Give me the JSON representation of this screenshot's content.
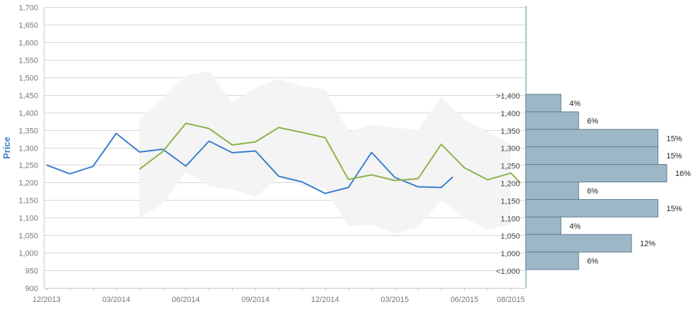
{
  "chart_data": {
    "type": "line",
    "title": "",
    "ylabel": "Price",
    "xlabel": "",
    "ylim": [
      900,
      1700
    ],
    "yticks": [
      900,
      950,
      1000,
      1050,
      1100,
      1150,
      1200,
      1250,
      1300,
      1350,
      1400,
      1450,
      1500,
      1550,
      1600,
      1650,
      1700
    ],
    "ytick_labels": [
      "900",
      "950",
      "1,000",
      "1,050",
      "1,100",
      "1,150",
      "1,200",
      "1,250",
      "1,300",
      "1,350",
      "1,400",
      "1,450",
      "1,500",
      "1,550",
      "1,600",
      "1,650",
      "1,700"
    ],
    "x_labels": [
      "12/2013",
      "03/2014",
      "06/2014",
      "09/2014",
      "12/2014",
      "03/2015",
      "06/2015",
      "08/2015"
    ],
    "x_label_months": [
      0,
      3,
      6,
      9,
      12,
      15,
      18,
      20
    ],
    "grid": true,
    "series": [
      {
        "name": "",
        "color": "#3a7fce",
        "months": [
          0,
          1,
          2,
          3,
          4,
          5,
          6,
          7,
          8,
          9,
          10,
          11,
          12,
          13,
          14,
          15,
          16,
          17,
          17.5
        ],
        "values": [
          1250,
          1225,
          1246,
          1340,
          1287,
          1295,
          1247,
          1318,
          1285,
          1290,
          1218,
          1202,
          1169,
          1186,
          1286,
          1215,
          1188,
          1186,
          1216
        ]
      },
      {
        "name": "",
        "color": "#8cb34a",
        "months": [
          4,
          5,
          6,
          7,
          8,
          9,
          10,
          11,
          12,
          13,
          14,
          15,
          16,
          17,
          18,
          19,
          20,
          20.4
        ],
        "values": [
          1238,
          1288,
          1369,
          1354,
          1307,
          1316,
          1357,
          1343,
          1328,
          1209,
          1222,
          1206,
          1211,
          1309,
          1242,
          1208,
          1227,
          1200
        ]
      }
    ],
    "band": {
      "color": "#f4f4f4",
      "months": [
        4,
        5,
        6,
        7,
        8,
        9,
        10,
        11,
        12,
        13,
        14,
        15,
        16,
        17,
        18,
        19,
        20
      ],
      "upper": [
        1380,
        1440,
        1505,
        1517,
        1428,
        1470,
        1495,
        1475,
        1465,
        1345,
        1365,
        1357,
        1350,
        1443,
        1380,
        1345,
        1310
      ],
      "lower": [
        1100,
        1138,
        1230,
        1190,
        1180,
        1160,
        1215,
        1190,
        1185,
        1075,
        1080,
        1055,
        1072,
        1150,
        1100,
        1065,
        1080
      ]
    },
    "histogram": {
      "color": "#9db7c6",
      "bins": [
        {
          "label": ">1,400",
          "percent": 4,
          "percent_label": "4%"
        },
        {
          "label": "1,400",
          "percent": 6,
          "percent_label": "6%"
        },
        {
          "label": "1,350",
          "percent": 15,
          "percent_label": "15%"
        },
        {
          "label": "1,300",
          "percent": 15,
          "percent_label": "15%"
        },
        {
          "label": "1,250",
          "percent": 16,
          "percent_label": "16%"
        },
        {
          "label": "1,200",
          "percent": 6,
          "percent_label": "6%"
        },
        {
          "label": "1,150",
          "percent": 15,
          "percent_label": "15%"
        },
        {
          "label": "1,100",
          "percent": 4,
          "percent_label": "4%"
        },
        {
          "label": "1,050",
          "percent": 12,
          "percent_label": "12%"
        },
        {
          "label": "1,000",
          "percent": 6,
          "percent_label": "6%"
        },
        {
          "label": "<1,000",
          "percent": 0,
          "percent_label": ""
        }
      ]
    }
  }
}
